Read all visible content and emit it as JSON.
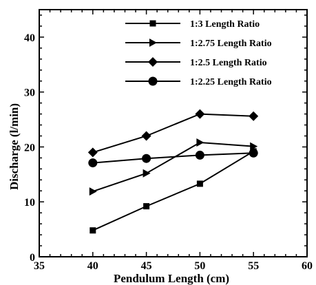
{
  "chart_data": {
    "type": "line",
    "xlabel": "Pendulum Length (cm)",
    "ylabel": "Discharge (l/min)",
    "xlim": [
      35,
      60
    ],
    "ylim": [
      0,
      45
    ],
    "xticks": [
      35,
      40,
      45,
      50,
      55,
      60
    ],
    "yticks": [
      0,
      10,
      20,
      30,
      40
    ],
    "grid": false,
    "legend_position": "top-right",
    "x": [
      40,
      45,
      50,
      55
    ],
    "series": [
      {
        "name": "1:3 Length Ratio",
        "marker": "square",
        "values": [
          4.8,
          9.2,
          13.3,
          19.2
        ]
      },
      {
        "name": "1:2.75 Length Ratio",
        "marker": "triangle-right",
        "values": [
          11.9,
          15.2,
          20.8,
          20.1
        ]
      },
      {
        "name": "1:2.5 Length Ratio",
        "marker": "diamond",
        "values": [
          19.0,
          22.0,
          26.0,
          25.6
        ]
      },
      {
        "name": "1:2.25 Length Ratio",
        "marker": "circle",
        "values": [
          17.1,
          17.9,
          18.5,
          18.9
        ]
      }
    ]
  }
}
